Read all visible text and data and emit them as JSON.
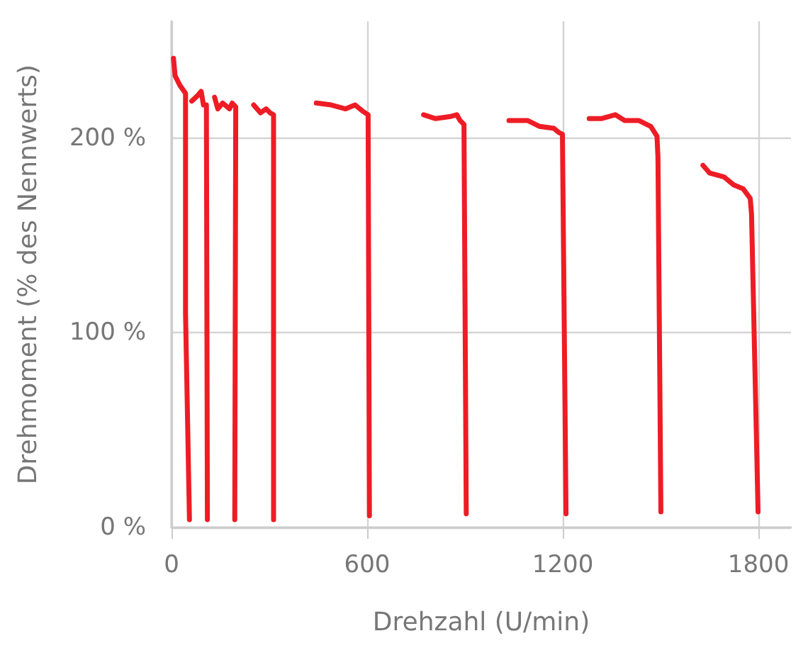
{
  "chart_data": {
    "type": "line",
    "xlabel": "Drehzahl (U/min)",
    "ylabel": "Drehmoment (% des Nennwerts)",
    "xlim": [
      0,
      1900
    ],
    "ylim": [
      0,
      260
    ],
    "xticks": [
      0,
      600,
      1200,
      1800
    ],
    "yticks": [
      {
        "value": 0,
        "label": "0 %"
      },
      {
        "value": 100,
        "label": "100 %"
      },
      {
        "value": 200,
        "label": "200 %"
      }
    ],
    "grid": true,
    "marker": "none",
    "line_style": "solid",
    "series": [
      {
        "color": "#ee1c25",
        "x": [
          6,
          11,
          26,
          43,
          43,
          55
        ],
        "values": [
          241,
          232,
          227,
          223,
          110,
          4
        ]
      },
      {
        "color": "#ee1c25",
        "x": [
          62,
          81,
          91,
          98,
          107,
          110
        ],
        "values": [
          219,
          222,
          224,
          217,
          217,
          4
        ]
      },
      {
        "color": "#ee1c25",
        "x": [
          132,
          142,
          157,
          178,
          186,
          197,
          194
        ],
        "values": [
          221,
          215,
          218,
          215,
          218,
          216,
          4
        ]
      },
      {
        "color": "#ee1c25",
        "x": [
          252,
          273,
          290,
          302,
          313,
          313
        ],
        "values": [
          217,
          213,
          215,
          213,
          212,
          4
        ]
      },
      {
        "color": "#ee1c25",
        "x": [
          444,
          490,
          534,
          563,
          585,
          603,
          607
        ],
        "values": [
          218,
          217,
          215,
          217,
          214,
          212,
          6
        ]
      },
      {
        "color": "#ee1c25",
        "x": [
          773,
          810,
          853,
          875,
          885,
          897,
          904
        ],
        "values": [
          212,
          210,
          211,
          212,
          209,
          207,
          7
        ]
      },
      {
        "color": "#ee1c25",
        "x": [
          1035,
          1093,
          1129,
          1173,
          1187,
          1199,
          1210
        ],
        "values": [
          209,
          209,
          206,
          205,
          203,
          202,
          7
        ]
      },
      {
        "color": "#ee1c25",
        "x": [
          1281,
          1318,
          1361,
          1390,
          1434,
          1470,
          1489,
          1492,
          1501
        ],
        "values": [
          210,
          210,
          212,
          209,
          209,
          206,
          201,
          190,
          8
        ]
      },
      {
        "color": "#ee1c25",
        "x": [
          1630,
          1651,
          1695,
          1724,
          1753,
          1775,
          1779,
          1799
        ],
        "values": [
          186,
          182,
          180,
          176,
          174,
          169,
          161,
          8
        ]
      }
    ]
  }
}
